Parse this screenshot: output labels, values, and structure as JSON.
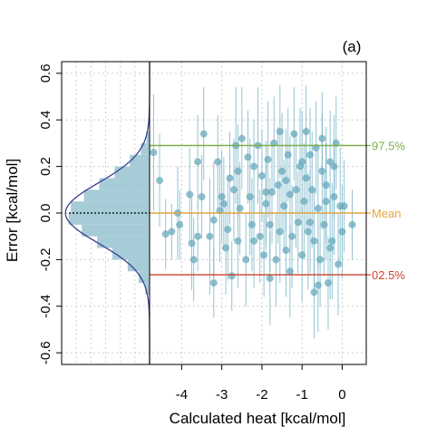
{
  "chart_data": {
    "type": "scatter",
    "panel_label": "(a)",
    "xlabel": "Calculated heat [kcal/mol]",
    "ylabel": "Error [kcal/mol]",
    "xlim": [
      -4.8,
      0.6
    ],
    "ylim": [
      -0.65,
      0.65
    ],
    "x_ticks": [
      "-4",
      "-3",
      "-2",
      "-1",
      "0"
    ],
    "x_tick_values": [
      -4,
      -3,
      -2,
      -1,
      0
    ],
    "y_ticks": [
      "-0.6",
      "-0.4",
      "-0.2",
      "0.0",
      "0.2",
      "0.4",
      "0.6"
    ],
    "y_tick_values": [
      -0.6,
      -0.4,
      -0.2,
      0.0,
      0.2,
      0.4,
      0.6
    ],
    "grid": true,
    "reference_lines": [
      {
        "label": "97.5%",
        "y": 0.29,
        "color": "#7cae4a"
      },
      {
        "label": "Mean",
        "y": 0.0,
        "color": "#e1a43e"
      },
      {
        "label": "02.5%",
        "y": -0.265,
        "color": "#d0402c"
      }
    ],
    "histogram": {
      "orientation": "horizontal",
      "bin_edges": [
        -0.35,
        -0.3,
        -0.25,
        -0.2,
        -0.15,
        -0.1,
        -0.05,
        0.0,
        0.05,
        0.1,
        0.15,
        0.2,
        0.25,
        0.3,
        0.35
      ],
      "counts": [
        4,
        10,
        20,
        34,
        48,
        62,
        74,
        72,
        60,
        46,
        32,
        18,
        8,
        3
      ],
      "density_curve_mean": 0.0,
      "density_curve_sd": 0.13
    },
    "series": [
      {
        "points": [
          [
            -4.7,
            0.26,
            0.25
          ],
          [
            -4.55,
            0.14,
            0.2
          ],
          [
            -4.4,
            -0.09,
            0.15
          ],
          [
            -4.25,
            -0.08,
            0.12
          ],
          [
            -4.1,
            0.0,
            0.2
          ],
          [
            -4.05,
            -0.05,
            0.15
          ],
          [
            -3.8,
            0.08,
            0.2
          ],
          [
            -3.75,
            -0.13,
            0.2
          ],
          [
            -3.7,
            -0.2,
            0.18
          ],
          [
            -3.6,
            -0.1,
            0.15
          ],
          [
            -3.5,
            0.07,
            0.18
          ],
          [
            -3.45,
            0.34,
            0.2
          ],
          [
            -3.3,
            -0.1,
            0.25
          ],
          [
            -3.2,
            -0.3,
            0.15
          ],
          [
            -3.1,
            0.22,
            0.2
          ],
          [
            -3.05,
            0.01,
            0.22
          ],
          [
            -3.0,
            0.07,
            0.2
          ],
          [
            -2.95,
            0.04,
            0.2
          ],
          [
            -2.85,
            -0.07,
            0.22
          ],
          [
            -2.8,
            0.15,
            0.2
          ],
          [
            -2.75,
            -0.27,
            0.15
          ],
          [
            -2.65,
            0.29,
            0.25
          ],
          [
            -2.6,
            -0.12,
            0.2
          ],
          [
            -2.55,
            0.02,
            0.2
          ],
          [
            -2.5,
            0.32,
            0.22
          ],
          [
            -2.4,
            -0.2,
            0.2
          ],
          [
            -2.35,
            0.24,
            0.2
          ],
          [
            -2.3,
            0.07,
            0.25
          ],
          [
            -2.25,
            -0.05,
            0.2
          ],
          [
            -2.2,
            0.2,
            0.2
          ],
          [
            -2.1,
            0.29,
            0.25
          ],
          [
            -2.05,
            -0.1,
            0.2
          ],
          [
            -2.0,
            0.16,
            0.2
          ],
          [
            -1.95,
            -0.18,
            0.18
          ],
          [
            -1.9,
            0.04,
            0.2
          ],
          [
            -1.85,
            0.23,
            0.25
          ],
          [
            -1.8,
            -0.05,
            0.2
          ],
          [
            -1.75,
            0.09,
            0.22
          ],
          [
            -1.7,
            0.3,
            0.2
          ],
          [
            -1.65,
            -0.2,
            0.2
          ],
          [
            -1.6,
            0.12,
            0.25
          ],
          [
            -1.55,
            -0.08,
            0.22
          ],
          [
            -1.5,
            0.18,
            0.25
          ],
          [
            -1.45,
            0.03,
            0.2
          ],
          [
            -1.4,
            -0.16,
            0.2
          ],
          [
            -1.35,
            0.25,
            0.2
          ],
          [
            -1.3,
            0.08,
            0.25
          ],
          [
            -1.25,
            -0.1,
            0.22
          ],
          [
            -1.2,
            0.34,
            0.2
          ],
          [
            -1.15,
            0.1,
            0.25
          ],
          [
            -1.1,
            -0.04,
            0.22
          ],
          [
            -1.05,
            0.2,
            0.25
          ],
          [
            -1.0,
            -0.18,
            0.2
          ],
          [
            -0.95,
            0.05,
            0.25
          ],
          [
            -0.9,
            0.15,
            0.22
          ],
          [
            -0.85,
            -0.08,
            0.25
          ],
          [
            -0.8,
            0.25,
            0.2
          ],
          [
            -0.75,
            0.1,
            0.25
          ],
          [
            -0.7,
            -0.12,
            0.22
          ],
          [
            -0.65,
            0.28,
            0.2
          ],
          [
            -0.6,
            0.02,
            0.25
          ],
          [
            -0.55,
            -0.2,
            0.2
          ],
          [
            -0.5,
            0.18,
            0.25
          ],
          [
            -0.45,
            -0.05,
            0.22
          ],
          [
            -0.4,
            0.12,
            0.25
          ],
          [
            -0.35,
            -0.3,
            0.2
          ],
          [
            -0.3,
            0.22,
            0.22
          ],
          [
            -0.25,
            -0.12,
            0.25
          ],
          [
            -0.2,
            0.07,
            0.25
          ],
          [
            -0.15,
            0.3,
            0.2
          ],
          [
            -0.1,
            -0.22,
            0.22
          ],
          [
            -0.05,
            0.03,
            0.25
          ],
          [
            0.0,
            -0.08,
            0.2
          ],
          [
            0.05,
            0.03,
            0.2
          ],
          [
            0.25,
            -0.05,
            0.15
          ],
          [
            -0.7,
            -0.34,
            0.2
          ],
          [
            -0.6,
            -0.31,
            0.2
          ],
          [
            -1.55,
            0.35,
            0.2
          ],
          [
            -3.2,
            -0.03,
            0.25
          ],
          [
            -2.6,
            0.18,
            0.2
          ],
          [
            -1.8,
            -0.28,
            0.2
          ],
          [
            -0.9,
            0.35,
            0.2
          ],
          [
            -0.3,
            -0.15,
            0.22
          ],
          [
            -2.2,
            -0.12,
            0.2
          ],
          [
            -1.3,
            -0.25,
            0.2
          ],
          [
            -0.5,
            0.32,
            0.2
          ],
          [
            -3.6,
            0.22,
            0.2
          ],
          [
            -2.9,
            -0.15,
            0.2
          ],
          [
            -1.0,
            0.22,
            0.22
          ],
          [
            -0.2,
            0.2,
            0.22
          ],
          [
            -1.9,
            0.09,
            0.22
          ],
          [
            -0.8,
            -0.04,
            0.22
          ],
          [
            -0.4,
            0.05,
            0.25
          ],
          [
            -1.4,
            0.14,
            0.22
          ],
          [
            -2.7,
            0.1,
            0.22
          ]
        ]
      }
    ]
  }
}
